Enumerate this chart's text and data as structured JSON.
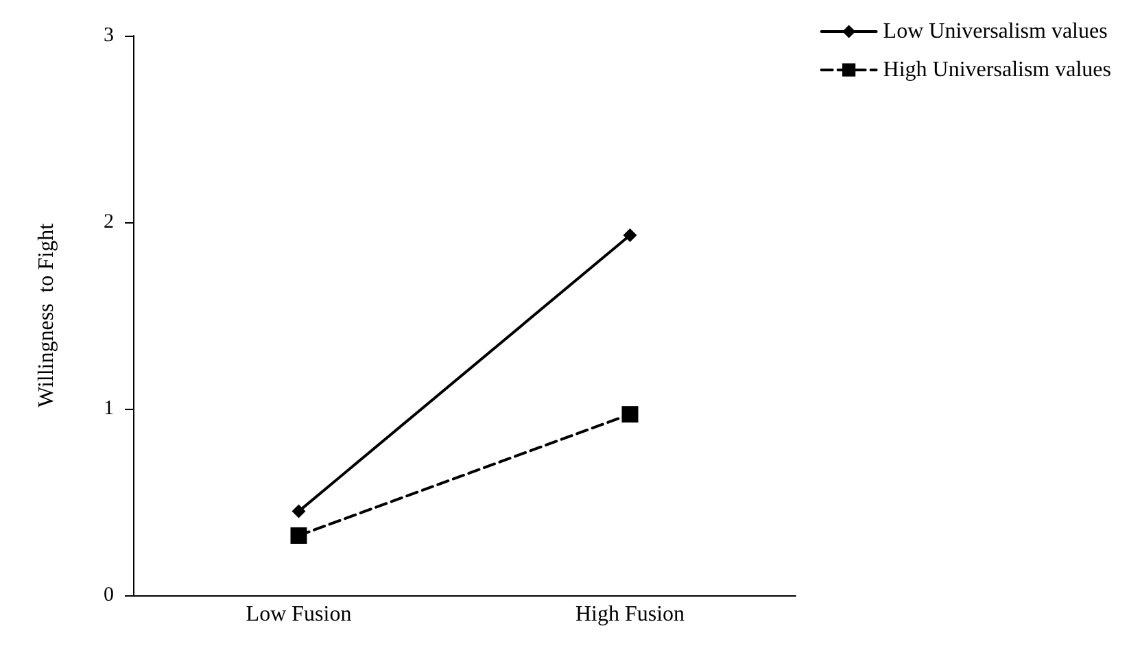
{
  "chart_data": {
    "type": "line",
    "ylabel": "Willingness  to Fight",
    "categories": [
      "Low Fusion",
      "High Fusion"
    ],
    "ylim": [
      0,
      3
    ],
    "yticks": [
      0,
      1,
      2,
      3
    ],
    "grid": false,
    "legend": "top right",
    "series": [
      {
        "name": "Low Universalism values",
        "color": "#000000",
        "values": [
          0.45,
          1.93
        ],
        "marker": "diamond",
        "line_style": "solid"
      },
      {
        "name": "High Universalism values",
        "color": "#000000",
        "values": [
          0.32,
          0.97
        ],
        "marker": "square",
        "line_style": "dashed"
      }
    ]
  }
}
